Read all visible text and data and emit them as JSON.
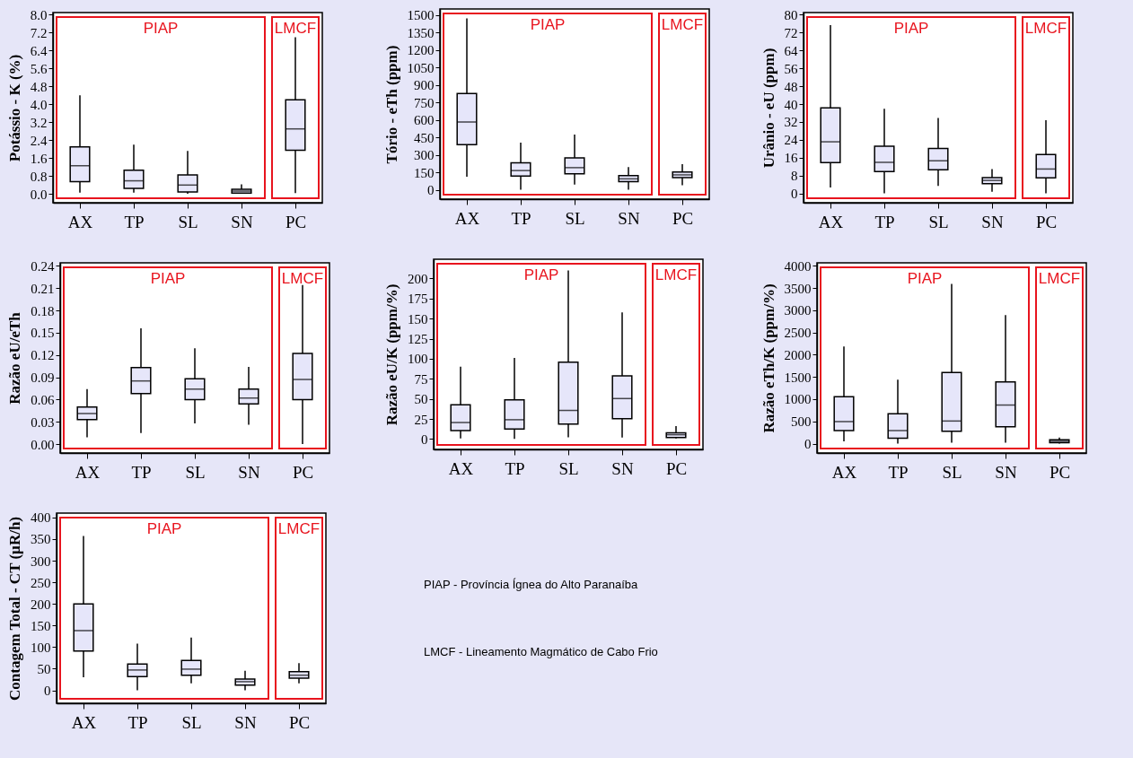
{
  "chart_data": [
    {
      "type": "box",
      "ylabel": "Potássio - K (%)",
      "categories": [
        "AX",
        "TP",
        "SL",
        "SN",
        "PC"
      ],
      "ylim": [
        -0.4,
        8.1
      ],
      "yticks": [
        {
          "value": 0,
          "label": "0.0"
        },
        0.8,
        1.6,
        2.4,
        3.2,
        {
          "value": 4,
          "label": "4.0"
        },
        4.8,
        5.6,
        6.4,
        7.2,
        {
          "value": 8,
          "label": "8.0"
        }
      ],
      "annotations": [
        "PIAP",
        "LMCF"
      ],
      "grid": false,
      "series": [
        {
          "color": "#e6e6fa",
          "boxes": [
            {
              "low": 0.05,
              "q1": 0.54,
              "median": 1.25,
              "q3": 2.1,
              "high": 4.4
            },
            {
              "low": 0.05,
              "q1": 0.24,
              "median": 0.58,
              "q3": 1.05,
              "high": 2.2
            },
            {
              "low": 0,
              "q1": 0.08,
              "median": 0.39,
              "q3": 0.84,
              "high": 1.92
            },
            {
              "low": 0,
              "q1": 0.03,
              "median": 0.12,
              "q3": 0.2,
              "high": 0.42
            },
            {
              "low": 0.03,
              "q1": 1.95,
              "median": 2.9,
              "q3": 4.2,
              "high": 7.0
            }
          ]
        }
      ]
    },
    {
      "type": "box",
      "ylabel": "Tório - eTh (ppm)",
      "categories": [
        "AX",
        "TP",
        "SL",
        "SN",
        "PC"
      ],
      "ylim": [
        -80,
        1550
      ],
      "yticks": [
        0,
        150,
        300,
        450,
        600,
        750,
        900,
        1050,
        1200,
        1350,
        1500
      ],
      "annotations": [
        "PIAP",
        "LMCF"
      ],
      "grid": false,
      "series": [
        {
          "color": "#e6e6fa",
          "boxes": [
            {
              "low": 113,
              "q1": 387,
              "median": 582,
              "q3": 825,
              "high": 1470
            },
            {
              "low": 0,
              "q1": 118,
              "median": 165,
              "q3": 232,
              "high": 405
            },
            {
              "low": 44,
              "q1": 138,
              "median": 190,
              "q3": 274,
              "high": 474
            },
            {
              "low": 0,
              "q1": 69,
              "median": 94,
              "q3": 121,
              "high": 195
            },
            {
              "low": 39,
              "q1": 104,
              "median": 128,
              "q3": 153,
              "high": 220
            }
          ]
        }
      ]
    },
    {
      "type": "box",
      "ylabel": "Urânio - eU (ppm)",
      "categories": [
        "AX",
        "TP",
        "SL",
        "SN",
        "PC"
      ],
      "ylim": [
        -4.2,
        81
      ],
      "yticks": [
        0,
        8,
        16,
        24,
        32,
        40,
        48,
        56,
        64,
        72,
        80
      ],
      "annotations": [
        "PIAP",
        "LMCF"
      ],
      "grid": false,
      "series": [
        {
          "color": "#e6e6fa",
          "boxes": [
            {
              "low": 2.6,
              "q1": 13.8,
              "median": 23.1,
              "q3": 38.3,
              "high": 75.4
            },
            {
              "low": 0,
              "q1": 9.8,
              "median": 13.9,
              "q3": 21.1,
              "high": 37.9
            },
            {
              "low": 3.3,
              "q1": 10.6,
              "median": 14.6,
              "q3": 20.1,
              "high": 33.8
            },
            {
              "low": 0.7,
              "q1": 4.3,
              "median": 5.8,
              "q3": 7.1,
              "high": 10.9
            },
            {
              "low": 0,
              "q1": 7.0,
              "median": 10.9,
              "q3": 17.4,
              "high": 32.8
            }
          ]
        }
      ]
    },
    {
      "type": "box",
      "ylabel": "Razão eU/eTh",
      "categories": [
        "AX",
        "TP",
        "SL",
        "SN",
        "PC"
      ],
      "ylim": [
        -0.012,
        0.244
      ],
      "yticks": [
        {
          "value": 0,
          "label": "0.00"
        },
        0.03,
        0.06,
        0.09,
        0.12,
        0.15,
        0.18,
        0.21,
        0.24
      ],
      "annotations": [
        "PIAP",
        "LMCF"
      ],
      "grid": false,
      "series": [
        {
          "color": "#e6e6fa",
          "boxes": [
            {
              "low": 0.009,
              "q1": 0.033,
              "median": 0.041,
              "q3": 0.05,
              "high": 0.074
            },
            {
              "low": 0.015,
              "q1": 0.068,
              "median": 0.085,
              "q3": 0.103,
              "high": 0.156
            },
            {
              "low": 0.028,
              "q1": 0.06,
              "median": 0.074,
              "q3": 0.088,
              "high": 0.129
            },
            {
              "low": 0.026,
              "q1": 0.054,
              "median": 0.062,
              "q3": 0.074,
              "high": 0.104
            },
            {
              "low": 0,
              "q1": 0.06,
              "median": 0.087,
              "q3": 0.122,
              "high": 0.214
            }
          ]
        }
      ]
    },
    {
      "type": "box",
      "ylabel": "Razão eU/K (ppm/%)",
      "categories": [
        "AX",
        "TP",
        "SL",
        "SN",
        "PC"
      ],
      "ylim": [
        -13,
        224
      ],
      "yticks": [
        0,
        25,
        50,
        75,
        100,
        125,
        150,
        175,
        200
      ],
      "annotations": [
        "PIAP",
        "LMCF"
      ],
      "grid": false,
      "series": [
        {
          "color": "#e6e6fa",
          "boxes": [
            {
              "low": 0.7,
              "q1": 10.6,
              "median": 20.5,
              "q3": 42.7,
              "high": 90
            },
            {
              "low": 0,
              "q1": 12.3,
              "median": 24,
              "q3": 48.7,
              "high": 101
            },
            {
              "low": 2.1,
              "q1": 18.7,
              "median": 35.6,
              "q3": 95.6,
              "high": 210
            },
            {
              "low": 1.8,
              "q1": 25.4,
              "median": 50.4,
              "q3": 78.7,
              "high": 157.7
            },
            {
              "low": 0.7,
              "q1": 1.8,
              "median": 5.3,
              "q3": 7.8,
              "high": 16.2
            }
          ]
        }
      ]
    },
    {
      "type": "box",
      "ylabel": "Razão eTh/K (ppm/%)",
      "categories": [
        "AX",
        "TP",
        "SL",
        "SN",
        "PC"
      ],
      "ylim": [
        -210,
        4065
      ],
      "yticks": [
        0,
        500,
        1000,
        1500,
        2000,
        2500,
        3000,
        3500,
        4000
      ],
      "annotations": [
        "PIAP",
        "LMCF"
      ],
      "grid": false,
      "series": [
        {
          "color": "#e6e6fa",
          "boxes": [
            {
              "low": 52,
              "q1": 294,
              "median": 496,
              "q3": 1057,
              "high": 2186
            },
            {
              "low": 0,
              "q1": 124,
              "median": 294,
              "q3": 672,
              "high": 1436
            },
            {
              "low": 20,
              "q1": 281,
              "median": 509,
              "q3": 1599,
              "high": 3589
            },
            {
              "low": 20,
              "q1": 378,
              "median": 868,
              "q3": 1390,
              "high": 2891
            },
            {
              "low": 0,
              "q1": 20,
              "median": 52,
              "q3": 85,
              "high": 137
            }
          ]
        }
      ]
    },
    {
      "type": "box",
      "ylabel": "Contagem Total - CT (µR/h)",
      "categories": [
        "AX",
        "TP",
        "SL",
        "SN",
        "PC"
      ],
      "ylim": [
        -30,
        410
      ],
      "yticks": [
        0,
        50,
        100,
        150,
        200,
        250,
        300,
        350,
        400
      ],
      "annotations": [
        "PIAP",
        "LMCF"
      ],
      "grid": false,
      "series": [
        {
          "color": "#e6e6fa",
          "boxes": [
            {
              "low": 30,
              "q1": 91,
              "median": 138,
              "q3": 200,
              "high": 357
            },
            {
              "low": 0,
              "q1": 32,
              "median": 47,
              "q3": 61,
              "high": 108
            },
            {
              "low": 16,
              "q1": 35,
              "median": 49,
              "q3": 69,
              "high": 122
            },
            {
              "low": 0,
              "q1": 12,
              "median": 20,
              "q3": 26,
              "high": 45
            },
            {
              "low": 16,
              "q1": 28,
              "median": 35,
              "q3": 43,
              "high": 63
            }
          ]
        }
      ]
    },
    {
      "type": "other",
      "annotations": [
        "PIAP - Província Ígnea do Alto Paranaíba",
        "LMCF - Lineamento Magmático de Cabo Frio"
      ]
    }
  ]
}
